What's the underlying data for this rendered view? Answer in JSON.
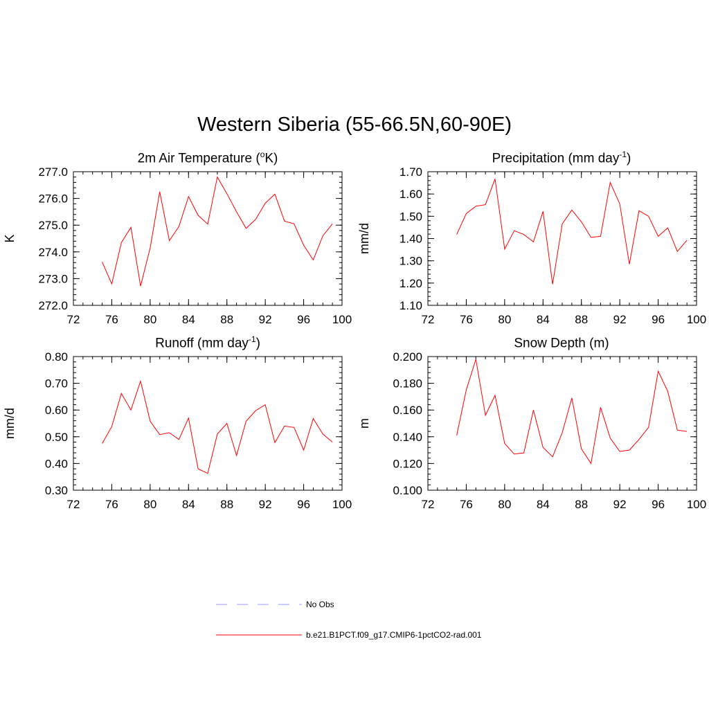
{
  "figure_title": "Western Siberia (55-66.5N,60-90E)",
  "legend": {
    "entries": [
      {
        "label": "No Obs",
        "color": "#9999ff",
        "style": "dashed"
      },
      {
        "label": "b.e21.B1PCT.f09_g17.CMIP6-1pctCO2-rad.001",
        "color": "#ff0000",
        "style": "solid"
      }
    ]
  },
  "chart_data": [
    {
      "type": "line",
      "title_main": "2m Air Temperature (",
      "title_sup": "o",
      "title_tail": "K)",
      "ylabel": "K",
      "xlabel": "",
      "xlim": [
        72,
        100
      ],
      "ylim": [
        272.0,
        277.0
      ],
      "xticks": [
        72,
        76,
        80,
        84,
        88,
        92,
        96,
        100
      ],
      "yticks": [
        "272.0",
        "273.0",
        "274.0",
        "275.0",
        "276.0",
        "277.0"
      ],
      "series": [
        {
          "color": "#ff0000",
          "x": [
            75,
            76,
            77,
            78,
            79,
            80,
            81,
            82,
            83,
            84,
            85,
            86,
            87,
            88,
            89,
            90,
            91,
            92,
            93,
            94,
            95,
            96,
            97,
            98,
            99
          ],
          "y": [
            273.62,
            272.8,
            274.35,
            274.92,
            272.72,
            274.15,
            276.25,
            274.42,
            274.95,
            276.07,
            275.37,
            275.04,
            276.8,
            276.18,
            275.5,
            274.88,
            275.22,
            275.82,
            276.16,
            275.15,
            275.05,
            274.25,
            273.7,
            274.6,
            275.05
          ]
        }
      ]
    },
    {
      "type": "line",
      "title_main": "Precipitation (mm day",
      "title_sup": "-1",
      "title_tail": ")",
      "ylabel": "mm/d",
      "xlabel": "",
      "xlim": [
        72,
        100
      ],
      "ylim": [
        1.1,
        1.7
      ],
      "xticks": [
        72,
        76,
        80,
        84,
        88,
        92,
        96,
        100
      ],
      "yticks": [
        "1.10",
        "1.20",
        "1.30",
        "1.40",
        "1.50",
        "1.60",
        "1.70"
      ],
      "series": [
        {
          "color": "#ff0000",
          "x": [
            75,
            76,
            77,
            78,
            79,
            80,
            81,
            82,
            83,
            84,
            85,
            86,
            87,
            88,
            89,
            90,
            91,
            92,
            93,
            94,
            95,
            96,
            97,
            98,
            99
          ],
          "y": [
            1.418,
            1.512,
            1.545,
            1.552,
            1.668,
            1.352,
            1.435,
            1.418,
            1.385,
            1.522,
            1.195,
            1.465,
            1.528,
            1.475,
            1.405,
            1.41,
            1.652,
            1.555,
            1.285,
            1.525,
            1.5,
            1.41,
            1.448,
            1.342,
            1.392
          ]
        }
      ]
    },
    {
      "type": "line",
      "title_main": "Runoff (mm day",
      "title_sup": "-1",
      "title_tail": ")",
      "ylabel": "mm/d",
      "xlabel": "",
      "xlim": [
        72,
        100
      ],
      "ylim": [
        0.3,
        0.8
      ],
      "xticks": [
        72,
        76,
        80,
        84,
        88,
        92,
        96,
        100
      ],
      "yticks": [
        "0.30",
        "0.40",
        "0.50",
        "0.60",
        "0.70",
        "0.80"
      ],
      "series": [
        {
          "color": "#ff0000",
          "x": [
            75,
            76,
            77,
            78,
            79,
            80,
            81,
            82,
            83,
            84,
            85,
            86,
            87,
            88,
            89,
            90,
            91,
            92,
            93,
            94,
            95,
            96,
            97,
            98,
            99
          ],
          "y": [
            0.475,
            0.538,
            0.662,
            0.6,
            0.708,
            0.558,
            0.508,
            0.515,
            0.49,
            0.57,
            0.38,
            0.363,
            0.51,
            0.55,
            0.43,
            0.558,
            0.598,
            0.62,
            0.478,
            0.54,
            0.535,
            0.45,
            0.568,
            0.51,
            0.48
          ]
        }
      ]
    },
    {
      "type": "line",
      "title_main": "Snow Depth (m)",
      "title_sup": "",
      "title_tail": "",
      "ylabel": "m",
      "xlabel": "",
      "xlim": [
        72,
        100
      ],
      "ylim": [
        0.1,
        0.2
      ],
      "xticks": [
        72,
        76,
        80,
        84,
        88,
        92,
        96,
        100
      ],
      "yticks": [
        "0.100",
        "0.120",
        "0.140",
        "0.160",
        "0.180",
        "0.200"
      ],
      "series": [
        {
          "color": "#ff0000",
          "x": [
            75,
            76,
            77,
            78,
            79,
            80,
            81,
            82,
            83,
            84,
            85,
            86,
            87,
            88,
            89,
            90,
            91,
            92,
            93,
            94,
            95,
            96,
            97,
            98,
            99
          ],
          "y": [
            0.141,
            0.175,
            0.198,
            0.156,
            0.171,
            0.135,
            0.127,
            0.128,
            0.16,
            0.132,
            0.125,
            0.143,
            0.169,
            0.131,
            0.12,
            0.162,
            0.139,
            0.129,
            0.13,
            0.138,
            0.147,
            0.189,
            0.174,
            0.145,
            0.144
          ]
        }
      ]
    }
  ]
}
